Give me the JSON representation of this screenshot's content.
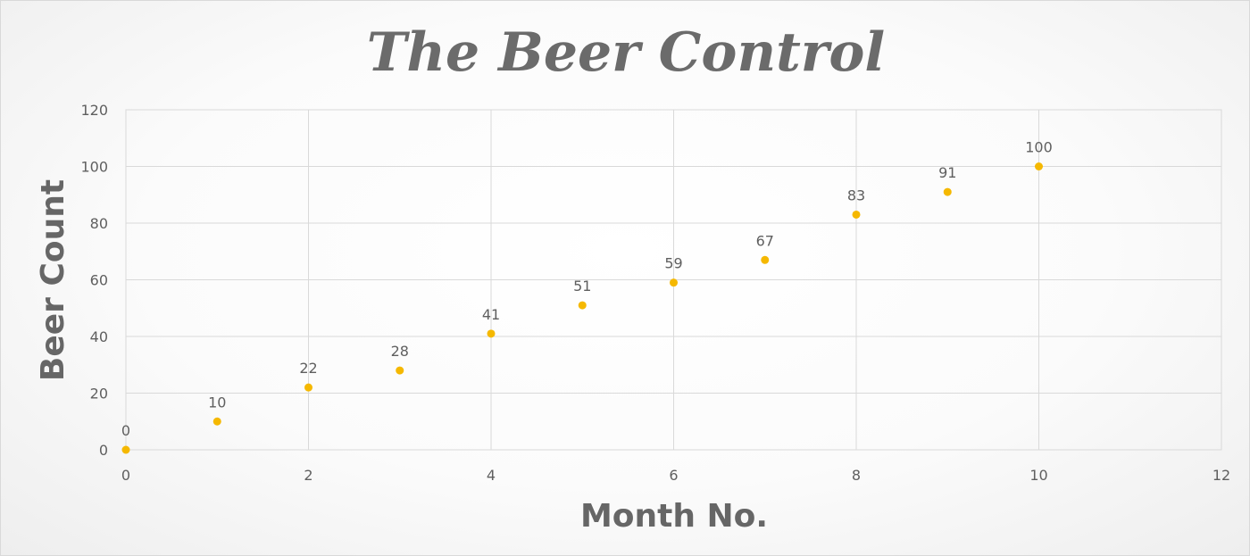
{
  "chart_data": {
    "type": "scatter",
    "title": "The Beer Control",
    "xlabel": "Month No.",
    "ylabel": "Beer Count",
    "xlim": [
      0,
      12
    ],
    "ylim": [
      0,
      120
    ],
    "x_ticks": [
      0,
      2,
      4,
      6,
      8,
      10,
      12
    ],
    "y_ticks": [
      0,
      20,
      40,
      60,
      80,
      100,
      120
    ],
    "grid": true,
    "legend": "none",
    "data_labels": true,
    "series": [
      {
        "color": "#F5B800",
        "x": [
          0,
          1,
          2,
          3,
          4,
          5,
          6,
          7,
          8,
          9,
          10
        ],
        "y": [
          0,
          10,
          22,
          28,
          41,
          51,
          59,
          67,
          83,
          91,
          100
        ]
      }
    ]
  }
}
